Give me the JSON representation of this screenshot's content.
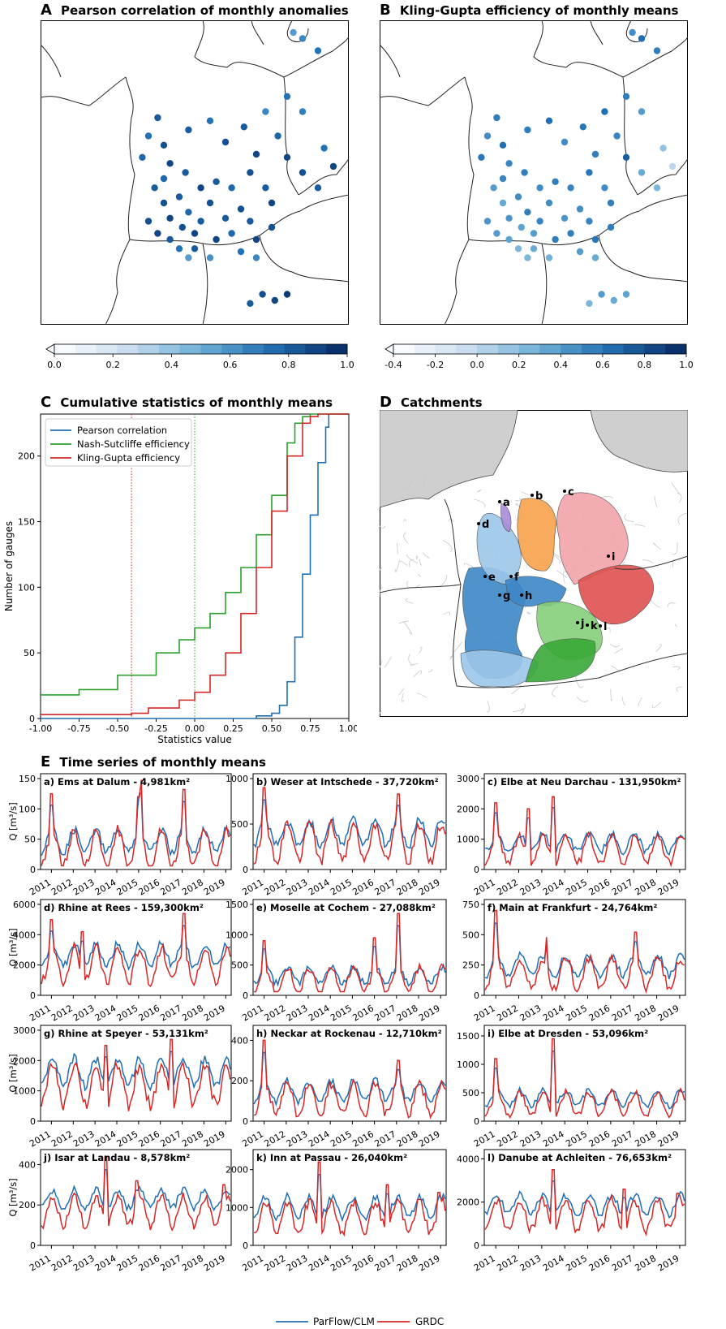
{
  "panel_titles": {
    "A": {
      "letter": "A",
      "title": "Pearson correlation of monthly anomalies"
    },
    "B": {
      "letter": "B",
      "title": "Kling-Gupta efficiency of monthly means"
    },
    "C": {
      "letter": "C",
      "title": "Cumulative statistics of monthly means"
    },
    "D": {
      "letter": "D",
      "title": "Catchments"
    },
    "E": {
      "letter": "E",
      "title": "Time series of monthly means"
    }
  },
  "colorbars": {
    "A": {
      "ticks": [
        "0.0",
        "0.2",
        "0.4",
        "0.6",
        "0.8",
        "1.0"
      ],
      "range": [
        0.0,
        1.0
      ]
    },
    "B": {
      "ticks": [
        "-0.4",
        "-0.2",
        "0.0",
        "0.2",
        "0.4",
        "0.6",
        "0.8",
        "1.0"
      ],
      "range": [
        -0.4,
        1.0
      ]
    }
  },
  "colors": {
    "blue": "#1f6fb4",
    "red": "#d62728",
    "green": "#2ca02c",
    "land_gray": "#cfcfcf",
    "purple": "#a78bd6",
    "orange": "#f7a24b",
    "pink": "#f2a3a8",
    "lightblue": "#9cc7ea",
    "lightgreen": "#86cf7a",
    "darkgreen": "#38a836",
    "midblue": "#3c87c6",
    "darkred": "#df5050"
  },
  "catchment_labels": [
    "a",
    "b",
    "c",
    "d",
    "e",
    "f",
    "g",
    "h",
    "i",
    "j",
    "k",
    "l"
  ],
  "chart_data": [
    {
      "type": "line",
      "title": "Cumulative statistics of monthly means",
      "xlabel": "Statistics value",
      "ylabel": "Number of gauges",
      "xlim": [
        -1.0,
        1.0
      ],
      "ylim": [
        0,
        232
      ],
      "xticks": [
        "-1.00",
        "-0.75",
        "-0.50",
        "-0.25",
        "0.00",
        "0.25",
        "0.50",
        "0.75",
        "1.00"
      ],
      "yticks": [
        "0",
        "50",
        "100",
        "150",
        "200"
      ],
      "vlines": [
        {
          "x": -0.41,
          "color": "red"
        },
        {
          "x": 0.0,
          "color": "green"
        }
      ],
      "series": [
        {
          "name": "Pearson correlation",
          "x": [
            -1.0,
            0.0,
            0.4,
            0.5,
            0.55,
            0.6,
            0.65,
            0.7,
            0.75,
            0.8,
            0.85,
            0.87,
            1.0
          ],
          "y": [
            0,
            0,
            2,
            4,
            10,
            28,
            62,
            110,
            155,
            195,
            222,
            232,
            232
          ]
        },
        {
          "name": "Nash-Sutcliffe efficiency",
          "x": [
            -1.0,
            -0.75,
            -0.5,
            -0.25,
            -0.1,
            0.0,
            0.1,
            0.2,
            0.3,
            0.4,
            0.5,
            0.6,
            0.65,
            0.7,
            0.75,
            1.0
          ],
          "y": [
            18,
            22,
            33,
            50,
            60,
            69,
            80,
            96,
            115,
            140,
            170,
            210,
            225,
            230,
            232,
            232
          ]
        },
        {
          "name": "Kling-Gupta efficiency",
          "x": [
            -1.0,
            -0.41,
            -0.3,
            -0.1,
            0.0,
            0.1,
            0.2,
            0.3,
            0.4,
            0.5,
            0.6,
            0.7,
            0.75,
            0.8,
            0.85,
            1.0
          ],
          "y": [
            3,
            4,
            8,
            14,
            20,
            33,
            50,
            80,
            115,
            158,
            200,
            225,
            230,
            232,
            232,
            232
          ]
        }
      ]
    },
    {
      "type": "line",
      "title": "Time series of monthly means",
      "ylabel": "Q [m³/s]",
      "years": [
        "2011",
        "2012",
        "2013",
        "2014",
        "2015",
        "2016",
        "2017",
        "2018",
        "2019"
      ],
      "legend": [
        "ParFlow/CLM",
        "GRDC"
      ],
      "panels": [
        {
          "label": "a) Ems at Dalum - 4,981km²",
          "ymax": 150,
          "yticks": [
            "0",
            "50",
            "100",
            "150"
          ],
          "mean": 35,
          "amp": 0.6,
          "peaks": [
            [
              2011,
              125
            ],
            [
              2015.1,
              148
            ],
            [
              2017.1,
              132
            ],
            [
              2015.0,
              120
            ]
          ],
          "seed": 1
        },
        {
          "label": "b) Weser at Intschede - 37,720km²",
          "ymax": 1000,
          "yticks": [
            "0",
            "500",
            "1000"
          ],
          "mean": 300,
          "amp": 0.5,
          "peaks": [
            [
              2011,
              900
            ],
            [
              2017.1,
              830
            ]
          ],
          "seed": 2
        },
        {
          "label": "c) Elbe at Neu Darchau - 131,950km²",
          "ymax": 3000,
          "yticks": [
            "0",
            "1000",
            "2000",
            "3000"
          ],
          "mean": 650,
          "amp": 0.5,
          "peaks": [
            [
              2011,
              2200
            ],
            [
              2012.4,
              2000
            ],
            [
              2013.5,
              2400
            ]
          ],
          "seed": 3
        },
        {
          "label": "d) Rhine at Rees - 159,300km²",
          "ymax": 6000,
          "yticks": [
            "0",
            "2000",
            "4000",
            "6000"
          ],
          "mean": 2000,
          "amp": 0.4,
          "peaks": [
            [
              2011,
              5000
            ],
            [
              2012.4,
              4200
            ],
            [
              2017.1,
              5400
            ]
          ],
          "seed": 4
        },
        {
          "label": "e) Moselle at Cochem - 27,088km²",
          "ymax": 1500,
          "yticks": [
            "0",
            "500",
            "1000",
            "1500"
          ],
          "mean": 250,
          "amp": 0.6,
          "peaks": [
            [
              2011,
              900
            ],
            [
              2017.1,
              1350
            ],
            [
              2016.0,
              950
            ]
          ],
          "seed": 5
        },
        {
          "label": "f) Main at Frankfurt - 24,764km²",
          "ymax": 750,
          "yticks": [
            "0",
            "250",
            "500",
            "750"
          ],
          "mean": 180,
          "amp": 0.5,
          "peaks": [
            [
              2011,
              700
            ],
            [
              2017.1,
              520
            ],
            [
              2013.2,
              480
            ]
          ],
          "seed": 6
        },
        {
          "label": "g) Rhine at Speyer - 53,131km²",
          "ymax": 3000,
          "yticks": [
            "0",
            "1000",
            "2000",
            "3000"
          ],
          "mean": 1200,
          "amp": 0.4,
          "peaks": [
            [
              2013.5,
              2500
            ],
            [
              2016.5,
              2700
            ]
          ],
          "seed": 7
        },
        {
          "label": "h) Neckar at Rockenau - 12,710km²",
          "ymax": 450,
          "yticks": [
            "0",
            "200",
            "400"
          ],
          "mean": 110,
          "amp": 0.5,
          "peaks": [
            [
              2011,
              400
            ],
            [
              2017.1,
              300
            ]
          ],
          "seed": 8
        },
        {
          "label": "i) Elbe at Dresden - 53,096km²",
          "ymax": 1600,
          "yticks": [
            "0",
            "500",
            "1000",
            "1500"
          ],
          "mean": 300,
          "amp": 0.5,
          "peaks": [
            [
              2011,
              1100
            ],
            [
              2013.5,
              1450
            ]
          ],
          "seed": 9
        },
        {
          "label": "j) Isar at Landau - 8,578km²",
          "ymax": 450,
          "yticks": [
            "0",
            "200",
            "400"
          ],
          "mean": 170,
          "amp": 0.3,
          "peaks": [
            [
              2013.5,
              440
            ],
            [
              2014.9,
              320
            ],
            [
              2018.9,
              300
            ]
          ],
          "seed": 10
        },
        {
          "label": "k) Inn at Passau - 26,040km²",
          "ymax": 2400,
          "yticks": [
            "0",
            "1000",
            "2000"
          ],
          "mean": 750,
          "amp": 0.4,
          "peaks": [
            [
              2013.5,
              2200
            ],
            [
              2016.6,
              1600
            ],
            [
              2018.9,
              1400
            ]
          ],
          "seed": 11
        },
        {
          "label": "l) Danube at Achleiten - 76,653km²",
          "ymax": 4200,
          "yticks": [
            "0",
            "2000",
            "4000"
          ],
          "mean": 1400,
          "amp": 0.35,
          "peaks": [
            [
              2013.5,
              3500
            ],
            [
              2016.6,
              2600
            ],
            [
              2018.9,
              2400
            ]
          ],
          "seed": 12
        }
      ]
    }
  ],
  "stations": {
    "A": [
      [
        0.38,
        0.32,
        0.8
      ],
      [
        0.35,
        0.38,
        0.7
      ],
      [
        0.33,
        0.45,
        0.75
      ],
      [
        0.4,
        0.41,
        0.85
      ],
      [
        0.42,
        0.47,
        0.9
      ],
      [
        0.48,
        0.36,
        0.8
      ],
      [
        0.55,
        0.33,
        0.7
      ],
      [
        0.6,
        0.4,
        0.85
      ],
      [
        0.66,
        0.35,
        0.8
      ],
      [
        0.7,
        0.44,
        0.9
      ],
      [
        0.73,
        0.3,
        0.6
      ],
      [
        0.77,
        0.38,
        0.75
      ],
      [
        0.8,
        0.45,
        0.9
      ],
      [
        0.85,
        0.5,
        0.85
      ],
      [
        0.9,
        0.55,
        0.8
      ],
      [
        0.92,
        0.42,
        0.7
      ],
      [
        0.85,
        0.3,
        0.65
      ],
      [
        0.8,
        0.25,
        0.7
      ],
      [
        0.95,
        0.48,
        0.9
      ],
      [
        0.37,
        0.55,
        0.8
      ],
      [
        0.4,
        0.6,
        0.85
      ],
      [
        0.42,
        0.65,
        0.9
      ],
      [
        0.45,
        0.58,
        0.8
      ],
      [
        0.46,
        0.68,
        0.85
      ],
      [
        0.48,
        0.63,
        0.75
      ],
      [
        0.5,
        0.7,
        0.9
      ],
      [
        0.52,
        0.66,
        0.8
      ],
      [
        0.55,
        0.6,
        0.85
      ],
      [
        0.57,
        0.72,
        0.9
      ],
      [
        0.6,
        0.65,
        0.8
      ],
      [
        0.62,
        0.7,
        0.75
      ],
      [
        0.65,
        0.62,
        0.85
      ],
      [
        0.68,
        0.66,
        0.8
      ],
      [
        0.7,
        0.72,
        0.9
      ],
      [
        0.75,
        0.68,
        0.85
      ],
      [
        0.5,
        0.75,
        0.8
      ],
      [
        0.45,
        0.75,
        0.7
      ],
      [
        0.42,
        0.72,
        0.8
      ],
      [
        0.38,
        0.7,
        0.9
      ],
      [
        0.35,
        0.66,
        0.85
      ],
      [
        0.4,
        0.52,
        0.75
      ],
      [
        0.47,
        0.5,
        0.8
      ],
      [
        0.52,
        0.55,
        0.9
      ],
      [
        0.57,
        0.53,
        0.8
      ],
      [
        0.62,
        0.55,
        0.75
      ],
      [
        0.68,
        0.5,
        0.85
      ],
      [
        0.73,
        0.55,
        0.8
      ],
      [
        0.75,
        0.6,
        0.9
      ],
      [
        0.65,
        0.76,
        0.7
      ],
      [
        0.7,
        0.78,
        0.6
      ],
      [
        0.55,
        0.78,
        0.55
      ],
      [
        0.48,
        0.78,
        0.5
      ],
      [
        0.72,
        0.9,
        0.85
      ],
      [
        0.76,
        0.92,
        0.9
      ],
      [
        0.8,
        0.9,
        0.95
      ],
      [
        0.68,
        0.93,
        0.8
      ],
      [
        0.85,
        0.06,
        0.6
      ],
      [
        0.9,
        0.1,
        0.7
      ],
      [
        0.82,
        0.04,
        0.5
      ]
    ],
    "B": [
      [
        0.38,
        0.32,
        0.5
      ],
      [
        0.35,
        0.38,
        0.4
      ],
      [
        0.33,
        0.45,
        0.55
      ],
      [
        0.4,
        0.41,
        0.6
      ],
      [
        0.42,
        0.47,
        0.45
      ],
      [
        0.48,
        0.36,
        0.5
      ],
      [
        0.55,
        0.33,
        0.6
      ],
      [
        0.6,
        0.4,
        0.4
      ],
      [
        0.66,
        0.35,
        0.55
      ],
      [
        0.7,
        0.44,
        0.5
      ],
      [
        0.73,
        0.3,
        0.6
      ],
      [
        0.77,
        0.38,
        0.45
      ],
      [
        0.8,
        0.45,
        0.7
      ],
      [
        0.85,
        0.5,
        0.2
      ],
      [
        0.9,
        0.55,
        0.1
      ],
      [
        0.92,
        0.42,
        0.0
      ],
      [
        0.85,
        0.3,
        0.3
      ],
      [
        0.8,
        0.25,
        0.5
      ],
      [
        0.95,
        0.48,
        -0.2
      ],
      [
        0.37,
        0.55,
        0.3
      ],
      [
        0.4,
        0.6,
        0.2
      ],
      [
        0.42,
        0.65,
        0.35
      ],
      [
        0.45,
        0.58,
        0.4
      ],
      [
        0.46,
        0.68,
        0.25
      ],
      [
        0.48,
        0.63,
        0.5
      ],
      [
        0.5,
        0.7,
        0.3
      ],
      [
        0.52,
        0.66,
        0.45
      ],
      [
        0.55,
        0.6,
        0.4
      ],
      [
        0.57,
        0.72,
        0.5
      ],
      [
        0.6,
        0.65,
        0.35
      ],
      [
        0.62,
        0.7,
        0.5
      ],
      [
        0.65,
        0.62,
        0.4
      ],
      [
        0.68,
        0.66,
        0.45
      ],
      [
        0.7,
        0.72,
        0.55
      ],
      [
        0.75,
        0.68,
        0.5
      ],
      [
        0.5,
        0.75,
        0.2
      ],
      [
        0.45,
        0.75,
        0.1
      ],
      [
        0.42,
        0.72,
        0.25
      ],
      [
        0.38,
        0.7,
        0.3
      ],
      [
        0.35,
        0.66,
        0.35
      ],
      [
        0.4,
        0.52,
        0.45
      ],
      [
        0.47,
        0.5,
        0.5
      ],
      [
        0.52,
        0.55,
        0.4
      ],
      [
        0.57,
        0.53,
        0.5
      ],
      [
        0.62,
        0.55,
        0.45
      ],
      [
        0.68,
        0.5,
        0.55
      ],
      [
        0.73,
        0.55,
        0.4
      ],
      [
        0.75,
        0.6,
        0.5
      ],
      [
        0.65,
        0.76,
        0.3
      ],
      [
        0.7,
        0.78,
        0.2
      ],
      [
        0.55,
        0.78,
        0.15
      ],
      [
        0.48,
        0.78,
        0.1
      ],
      [
        0.72,
        0.9,
        0.3
      ],
      [
        0.76,
        0.92,
        0.2
      ],
      [
        0.8,
        0.9,
        0.25
      ],
      [
        0.68,
        0.93,
        0.1
      ],
      [
        0.85,
        0.06,
        0.6
      ],
      [
        0.9,
        0.1,
        0.5
      ],
      [
        0.82,
        0.04,
        0.4
      ]
    ]
  },
  "legend_E": {
    "parflow": "ParFlow/CLM",
    "grdc": "GRDC"
  }
}
